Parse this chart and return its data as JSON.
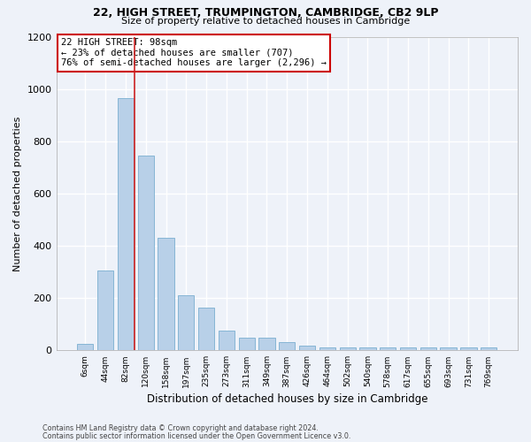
{
  "title1": "22, HIGH STREET, TRUMPINGTON, CAMBRIDGE, CB2 9LP",
  "title2": "Size of property relative to detached houses in Cambridge",
  "xlabel": "Distribution of detached houses by size in Cambridge",
  "ylabel": "Number of detached properties",
  "categories": [
    "6sqm",
    "44sqm",
    "82sqm",
    "120sqm",
    "158sqm",
    "197sqm",
    "235sqm",
    "273sqm",
    "311sqm",
    "349sqm",
    "387sqm",
    "426sqm",
    "464sqm",
    "502sqm",
    "540sqm",
    "578sqm",
    "617sqm",
    "655sqm",
    "693sqm",
    "731sqm",
    "769sqm"
  ],
  "values": [
    25,
    305,
    965,
    745,
    430,
    210,
    165,
    75,
    48,
    48,
    30,
    18,
    12,
    10,
    10,
    10,
    10,
    10,
    10,
    12,
    10
  ],
  "bar_color": "#b8d0e8",
  "bar_edge_color": "#7aaed0",
  "annotation_line1": "22 HIGH STREET: 98sqm",
  "annotation_line2": "← 23% of detached houses are smaller (707)",
  "annotation_line3": "76% of semi-detached houses are larger (2,296) →",
  "annotation_box_color": "#ffffff",
  "annotation_box_edge": "#cc0000",
  "footer1": "Contains HM Land Registry data © Crown copyright and database right 2024.",
  "footer2": "Contains public sector information licensed under the Open Government Licence v3.0.",
  "ylim": [
    0,
    1200
  ],
  "yticks": [
    0,
    200,
    400,
    600,
    800,
    1000,
    1200
  ],
  "background_color": "#eef2f9",
  "grid_color": "#ffffff",
  "red_line_color": "#cc2222"
}
